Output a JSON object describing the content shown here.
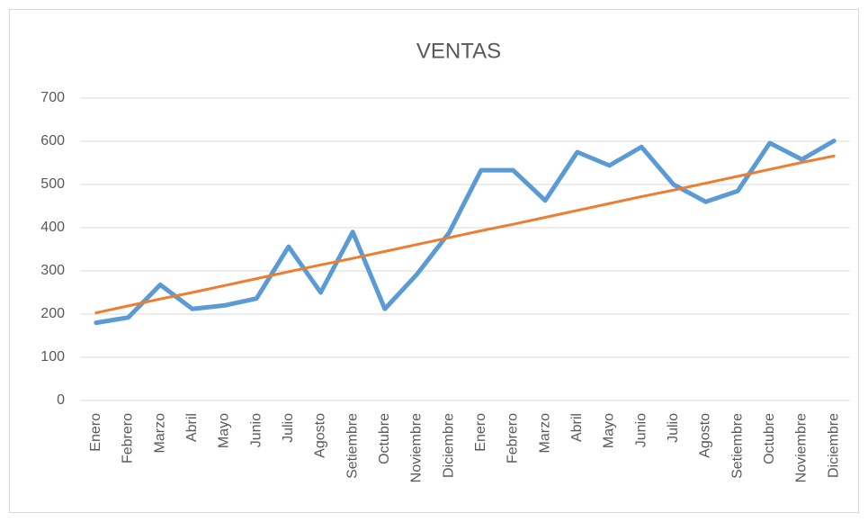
{
  "chart_data": {
    "type": "line",
    "title": "VENTAS",
    "categories": [
      "Enero",
      "Febrero",
      "Marzo",
      "Abril",
      "Mayo",
      "Junio",
      "Julio",
      "Agosto",
      "Setiembre",
      "Octubre",
      "Noviembre",
      "Diciembre",
      "Enero",
      "Febrero",
      "Marzo",
      "Abril",
      "Mayo",
      "Junio",
      "Julio",
      "Agosto",
      "Setiembre",
      "Octubre",
      "Noviembre",
      "Diciembre"
    ],
    "series": [
      {
        "color": "#5b9bd5",
        "values": [
          180,
          192,
          268,
          212,
          220,
          236,
          356,
          250,
          390,
          212,
          292,
          388,
          533,
          533,
          463,
          575,
          544,
          587,
          500,
          460,
          485,
          596,
          558,
          601
        ]
      },
      {
        "color": "#ed7d31",
        "values": [
          203,
          219,
          235,
          250,
          266,
          282,
          298,
          314,
          329,
          345,
          361,
          377,
          393,
          408,
          424,
          440,
          456,
          472,
          487,
          503,
          519,
          535,
          551,
          566
        ]
      }
    ],
    "ylim": [
      0,
      700
    ],
    "yticks": [
      0,
      100,
      200,
      300,
      400,
      500,
      600,
      700
    ],
    "grid": true
  }
}
